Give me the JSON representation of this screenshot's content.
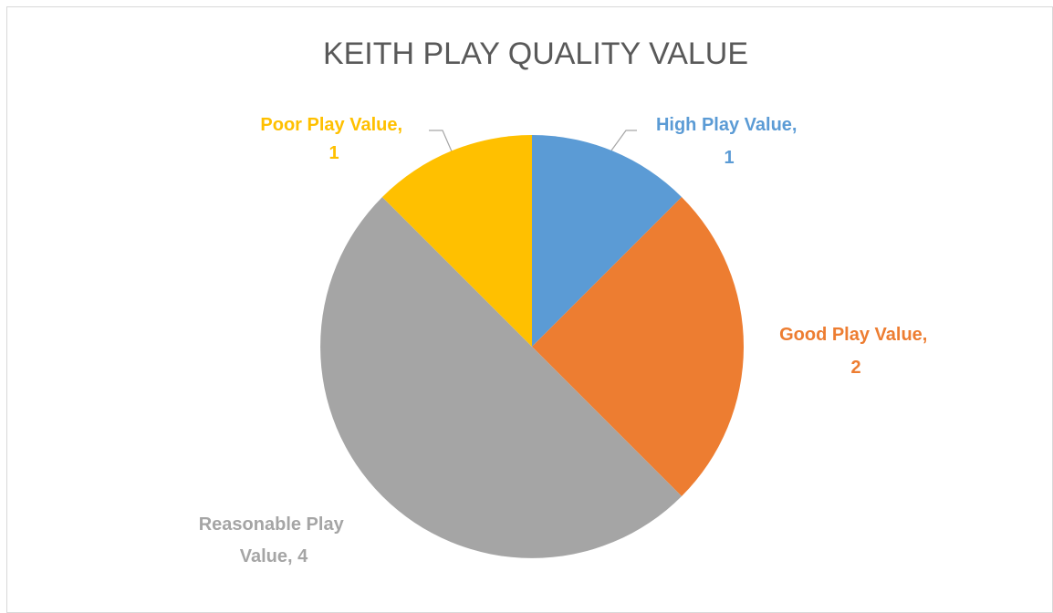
{
  "chart_data": {
    "type": "pie",
    "title": "KEITH PLAY QUALITY VALUE",
    "values": [
      1,
      2,
      4,
      1
    ],
    "value_labels": [
      "High Play Value, 1",
      "Good Play Value, 2",
      "Reasonable Play Value, 4",
      "Poor Play Value, 1"
    ],
    "colors": [
      "#5b9bd5",
      "#ed7d31",
      "#a5a5a5",
      "#ffc000"
    ]
  }
}
